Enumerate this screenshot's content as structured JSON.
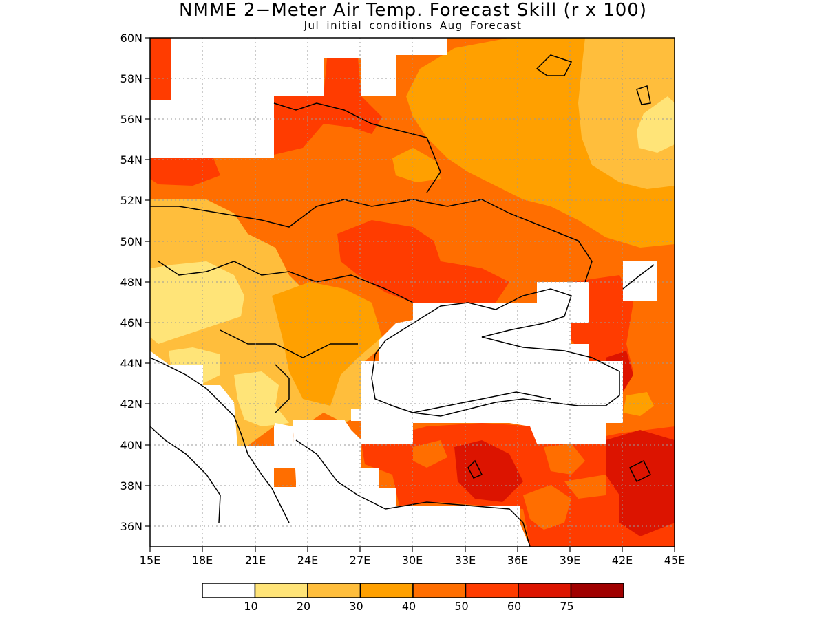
{
  "title": "NMME 2−Meter Air Temp. Forecast Skill (r x 100)",
  "subtitle": "Jul initial conditions  Aug Forecast",
  "map": {
    "lon_range": [
      15,
      45
    ],
    "lat_range": [
      35,
      60
    ],
    "lon_ticks": [
      "15E",
      "18E",
      "21E",
      "24E",
      "27E",
      "30E",
      "33E",
      "36E",
      "39E",
      "42E",
      "45E"
    ],
    "lat_ticks": [
      "60N",
      "58N",
      "56N",
      "54N",
      "52N",
      "50N",
      "48N",
      "46N",
      "44N",
      "42N",
      "40N",
      "38N",
      "36N"
    ],
    "grid": true
  },
  "colorbar": {
    "labels": [
      "10",
      "20",
      "30",
      "40",
      "50",
      "60",
      "75"
    ],
    "colors": [
      "#ffffff",
      "#ffe478",
      "#ffbe3c",
      "#ffa000",
      "#ff6e00",
      "#ff3c00",
      "#dc1400",
      "#a00000"
    ]
  }
}
